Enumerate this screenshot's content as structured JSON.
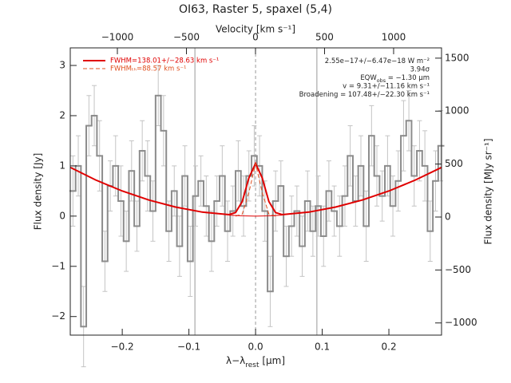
{
  "chart_data": {
    "type": "spectrum",
    "title": "OI63, Raster 5, spaxel (5,4)",
    "x_label": [
      "λ−λ",
      "rest",
      " [μm]"
    ],
    "x2_label": "Velocity [km s⁻¹]",
    "y_label": "Flux density [Jy]",
    "y2_label": "Flux density [MJy sr⁻¹]",
    "xlim": [
      -0.278,
      0.279
    ],
    "xticks": [
      {
        "value": -0.2,
        "label": "−0.2"
      },
      {
        "value": -0.1,
        "label": "−0.1"
      },
      {
        "value": 0,
        "label": "0.0"
      },
      0.1,
      0.2
    ],
    "ylim": [
      -2.37,
      3.35
    ],
    "yticks": [
      {
        "value": -2,
        "label": "−2"
      },
      {
        "value": -1,
        "label": "−1"
      },
      0,
      1,
      2,
      3
    ],
    "x2lim": [
      -1341,
      1347
    ],
    "x2ticks": [
      {
        "value": -1000,
        "label": "−1000"
      },
      {
        "value": -500,
        "label": "−500"
      },
      0,
      500,
      1000
    ],
    "y2lim": [
      -1115,
      1597
    ],
    "y2ticks": [
      {
        "value": -1000,
        "label": "−1000"
      },
      {
        "value": -500,
        "label": "−500"
      },
      0,
      500,
      1000,
      1500
    ],
    "vlines": [
      {
        "x": -0.091,
        "dash": false
      },
      {
        "x": 0,
        "dash": true
      },
      {
        "x": 0.092,
        "dash": false
      }
    ],
    "spectrum": {
      "color": "#8c8c8c",
      "error_color": "#c4c4c4",
      "x": [
        -0.274,
        -0.266,
        -0.258,
        -0.25,
        -0.242,
        -0.234,
        -0.226,
        -0.218,
        -0.21,
        -0.202,
        -0.194,
        -0.186,
        -0.178,
        -0.17,
        -0.162,
        -0.154,
        -0.146,
        -0.138,
        -0.13,
        -0.122,
        -0.114,
        -0.106,
        -0.098,
        -0.09,
        -0.082,
        -0.074,
        -0.066,
        -0.058,
        -0.05,
        -0.042,
        -0.034,
        -0.026,
        -0.018,
        -0.01,
        -0.002,
        0.006,
        0.014,
        0.022,
        0.03,
        0.038,
        0.046,
        0.054,
        0.062,
        0.07,
        0.078,
        0.086,
        0.094,
        0.102,
        0.11,
        0.118,
        0.126,
        0.134,
        0.142,
        0.15,
        0.158,
        0.166,
        0.174,
        0.182,
        0.19,
        0.198,
        0.206,
        0.214,
        0.222,
        0.23,
        0.238,
        0.246,
        0.254,
        0.262,
        0.27,
        0.278
      ],
      "values": [
        0.5,
        1.0,
        -2.2,
        1.8,
        2.0,
        1.2,
        -0.9,
        0.6,
        1.0,
        0.3,
        -0.5,
        0.9,
        -0.2,
        1.3,
        0.8,
        0.1,
        2.4,
        1.7,
        -0.3,
        0.5,
        -0.6,
        0.8,
        -0.9,
        0.4,
        0.7,
        0.2,
        -0.5,
        0.3,
        0.8,
        -0.3,
        0.1,
        0.9,
        0.2,
        0.8,
        1.2,
        1.0,
        0.1,
        -1.5,
        0.3,
        0.6,
        -0.8,
        -0.2,
        0.1,
        -0.6,
        0.3,
        -0.3,
        0.2,
        -0.4,
        0.5,
        0.1,
        -0.2,
        0.4,
        1.2,
        0.3,
        1.0,
        -0.2,
        1.6,
        0.8,
        0.4,
        1.0,
        0.2,
        0.7,
        1.6,
        1.9,
        0.8,
        1.3,
        1.0,
        -0.3,
        0.7,
        1.4
      ],
      "errors": [
        0.7,
        0.6,
        0.8,
        0.6,
        0.6,
        0.7,
        0.6,
        0.5,
        0.6,
        0.7,
        0.6,
        0.6,
        0.5,
        0.6,
        0.7,
        0.6,
        0.6,
        0.7,
        0.6,
        0.5,
        0.6,
        0.6,
        0.7,
        0.6,
        0.5,
        0.6,
        0.6,
        0.5,
        0.6,
        0.6,
        0.5,
        0.6,
        0.6,
        0.5,
        0.6,
        0.6,
        0.6,
        0.7,
        0.6,
        0.5,
        0.6,
        0.6,
        0.5,
        0.6,
        0.6,
        0.5,
        0.6,
        0.6,
        0.6,
        0.5,
        0.6,
        0.6,
        0.6,
        0.5,
        0.6,
        0.7,
        0.6,
        0.6,
        0.5,
        0.6,
        0.6,
        0.6,
        0.7,
        0.6,
        0.6,
        0.6,
        0.7,
        0.6,
        0.6,
        0.7
      ]
    },
    "series": [
      {
        "name": "FWHM=138.01+/−28.63 km s⁻¹",
        "color": "#e00000",
        "width": 2,
        "dash": false,
        "legend": true,
        "x": [
          -0.278,
          -0.24,
          -0.2,
          -0.16,
          -0.12,
          -0.08,
          -0.04,
          -0.03,
          -0.02,
          -0.01,
          0,
          0.01,
          0.02,
          0.03,
          0.04,
          0.08,
          0.12,
          0.16,
          0.2,
          0.24,
          0.279
        ],
        "values": [
          0.97,
          0.72,
          0.5,
          0.32,
          0.18,
          0.08,
          0.03,
          0.07,
          0.29,
          0.76,
          1.05,
          0.76,
          0.29,
          0.07,
          0.03,
          0.08,
          0.18,
          0.32,
          0.5,
          0.72,
          0.97
        ]
      },
      {
        "name": "FWHMₜₕ=88.57 km s⁻¹",
        "color": "#e05020",
        "width": 1,
        "dash": true,
        "legend": true,
        "x": [
          -0.03,
          -0.02,
          -0.01,
          0,
          0.01,
          0.02,
          0.03
        ],
        "values": [
          0.0,
          0.04,
          0.47,
          1.05,
          0.47,
          0.04,
          0.0
        ]
      },
      {
        "name": "continuum",
        "color": "#e00000",
        "width": 1,
        "dash": false,
        "legend": false,
        "x": [
          -0.04,
          -0.02,
          0,
          0.02,
          0.04
        ],
        "values": [
          0.02,
          0.005,
          0.0,
          0.005,
          0.02
        ]
      }
    ],
    "annotations": [
      [
        "2.55e−17+/−6.47e−18 W m⁻²"
      ],
      [
        "3.94σ"
      ],
      [
        "EQW",
        "obs",
        " = −1.30 μm"
      ],
      [
        "v = 9.31+/−11.16 km s⁻¹"
      ],
      [
        "Broadening = 107.48+/−22.30 km s⁻¹"
      ]
    ]
  }
}
